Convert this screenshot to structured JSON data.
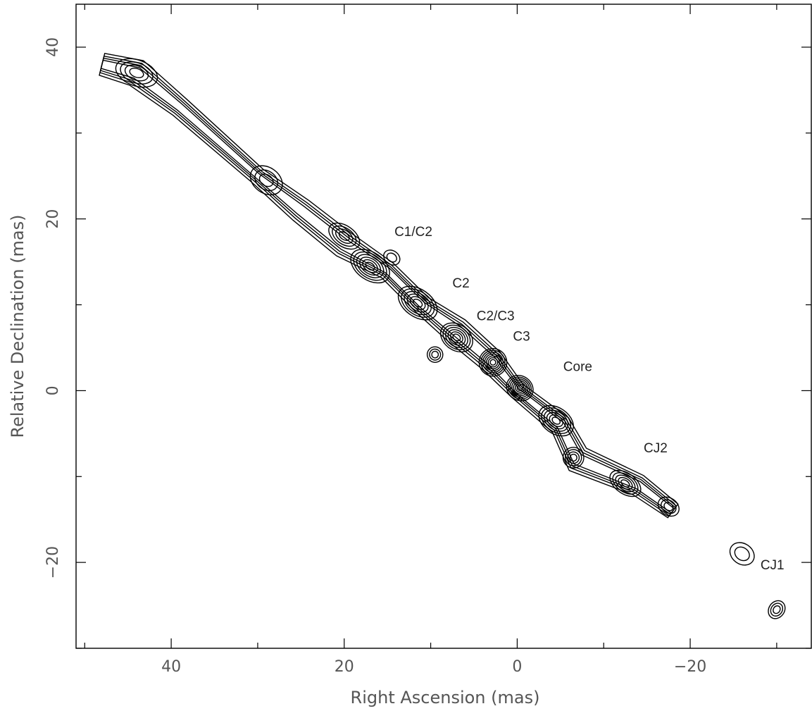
{
  "chart_data": {
    "type": "contour",
    "xlabel": "Right Ascension  (mas)",
    "ylabel": "Relative Declination  (mas)",
    "xlim": [
      51,
      -34
    ],
    "ylim": [
      -30,
      45
    ],
    "xticks_labeled": [
      40,
      20,
      0,
      -20
    ],
    "yticks_labeled": [
      40,
      20,
      0,
      -20
    ],
    "x_tick_labels": [
      "40",
      "20",
      "0",
      "−20"
    ],
    "y_tick_labels": [
      "40",
      "20",
      "0",
      "−20"
    ],
    "annotations": [
      {
        "text": "C1/C2",
        "x": 12,
        "y": 18
      },
      {
        "text": "C2",
        "x": 6.5,
        "y": 12
      },
      {
        "text": "C2/C3",
        "x": 2.5,
        "y": 8.2
      },
      {
        "text": "C3",
        "x": -0.5,
        "y": 5.8
      },
      {
        "text": "Core",
        "x": -7,
        "y": 2.3
      },
      {
        "text": "CJ2",
        "x": -16,
        "y": -7.2
      },
      {
        "text": "CJ1",
        "x": -29.5,
        "y": -20.8
      }
    ],
    "jet_ridge": [
      {
        "x": 48,
        "y": 38
      },
      {
        "x": 44,
        "y": 37
      },
      {
        "x": 39,
        "y": 33
      },
      {
        "x": 30,
        "y": 25
      },
      {
        "x": 25,
        "y": 21
      },
      {
        "x": 20,
        "y": 17
      },
      {
        "x": 15,
        "y": 14
      },
      {
        "x": 11,
        "y": 10
      },
      {
        "x": 7,
        "y": 7
      },
      {
        "x": 3,
        "y": 3.5
      },
      {
        "x": 0,
        "y": 0
      },
      {
        "x": -5,
        "y": -4
      },
      {
        "x": -7,
        "y": -8
      },
      {
        "x": -14,
        "y": -11
      },
      {
        "x": -18,
        "y": -14
      }
    ],
    "components": [
      {
        "x": 44,
        "y": 37,
        "levels": 4,
        "rx": 2.5,
        "ry": 1.5
      },
      {
        "x": 29,
        "y": 24.5,
        "levels": 3,
        "rx": 2,
        "ry": 1.5
      },
      {
        "x": 20,
        "y": 18,
        "levels": 4,
        "rx": 2,
        "ry": 1.2
      },
      {
        "x": 17,
        "y": 14.5,
        "levels": 6,
        "rx": 2.5,
        "ry": 1.6
      },
      {
        "x": 14.5,
        "y": 15.5,
        "levels": 2,
        "rx": 1,
        "ry": 0.8
      },
      {
        "x": 11.5,
        "y": 10.2,
        "levels": 6,
        "rx": 2.5,
        "ry": 1.6
      },
      {
        "x": 7,
        "y": 6.2,
        "levels": 6,
        "rx": 2,
        "ry": 1.5
      },
      {
        "x": 9.5,
        "y": 4.2,
        "levels": 3,
        "rx": 0.9,
        "ry": 0.9
      },
      {
        "x": 2.8,
        "y": 3.3,
        "levels": 7,
        "rx": 1.6,
        "ry": 1.6
      },
      {
        "x": -0.3,
        "y": 0.3,
        "levels": 7,
        "rx": 1.6,
        "ry": 1.4
      },
      {
        "x": -4.5,
        "y": -3.5,
        "levels": 6,
        "rx": 2.2,
        "ry": 1.5
      },
      {
        "x": -6.5,
        "y": -7.8,
        "levels": 4,
        "rx": 1.2,
        "ry": 1.2
      },
      {
        "x": -12.5,
        "y": -10.8,
        "levels": 5,
        "rx": 2,
        "ry": 1.2
      },
      {
        "x": -17.5,
        "y": -13.5,
        "levels": 3,
        "rx": 1.3,
        "ry": 1.0
      },
      {
        "x": -30,
        "y": -25.5,
        "levels": 3,
        "rx": 0.9,
        "ry": 1.1
      },
      {
        "x": -26,
        "y": -19,
        "levels": 2,
        "rx": 1.5,
        "ry": 1.2
      }
    ],
    "grid": false,
    "legend": "none"
  }
}
